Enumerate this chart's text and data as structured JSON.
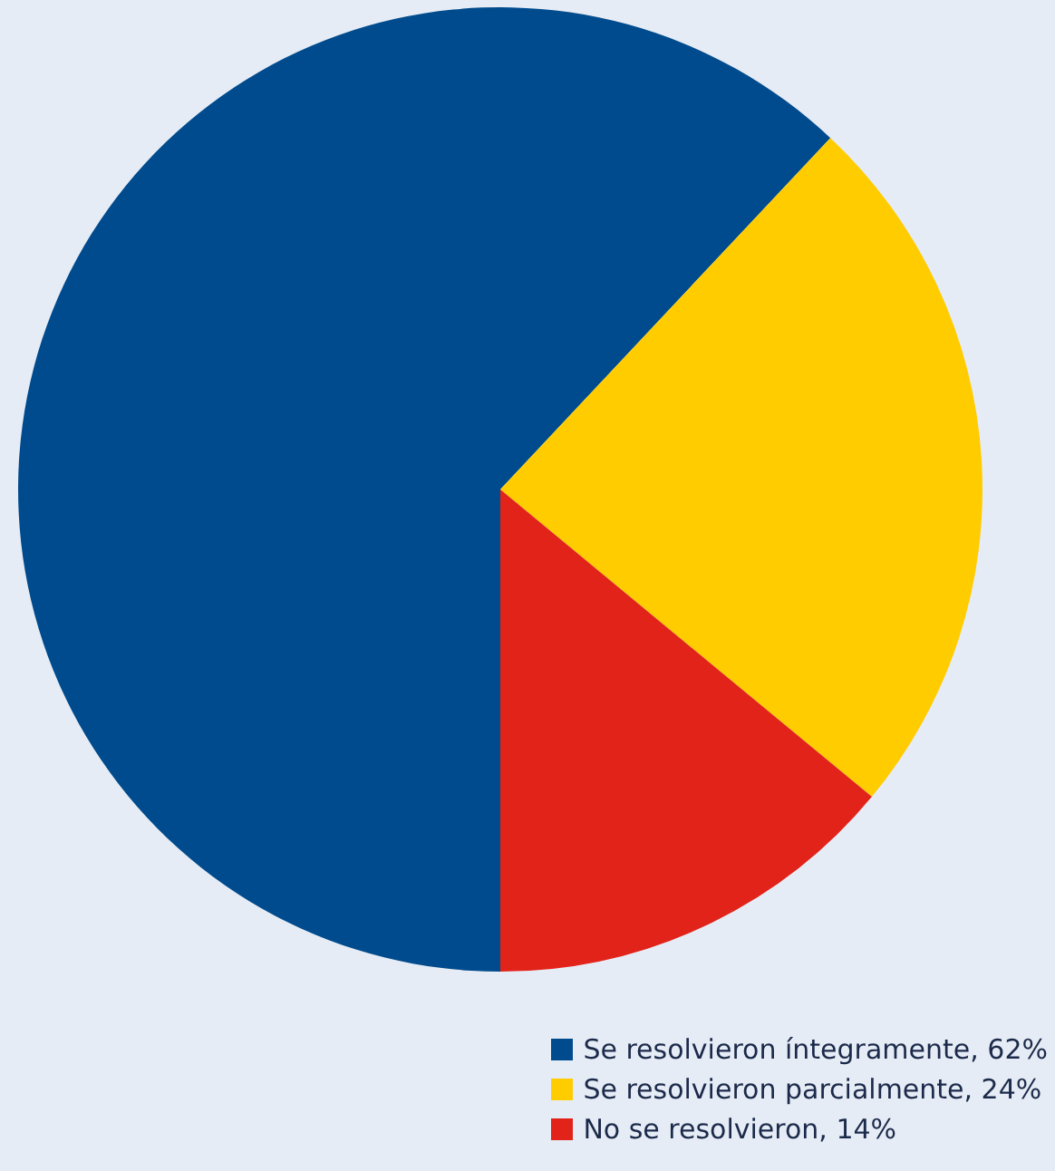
{
  "chart_data": {
    "type": "pie",
    "categories": [
      "Se resolvieron íntegramente",
      "Se resolvieron parcialmente",
      "No se resolvieron"
    ],
    "values": [
      62,
      24,
      14
    ],
    "colors": [
      "#004b8d",
      "#ffcc00",
      "#e2231a"
    ],
    "value_labels": [
      "62%",
      "24%",
      "14%"
    ],
    "legend": "bottom right"
  }
}
